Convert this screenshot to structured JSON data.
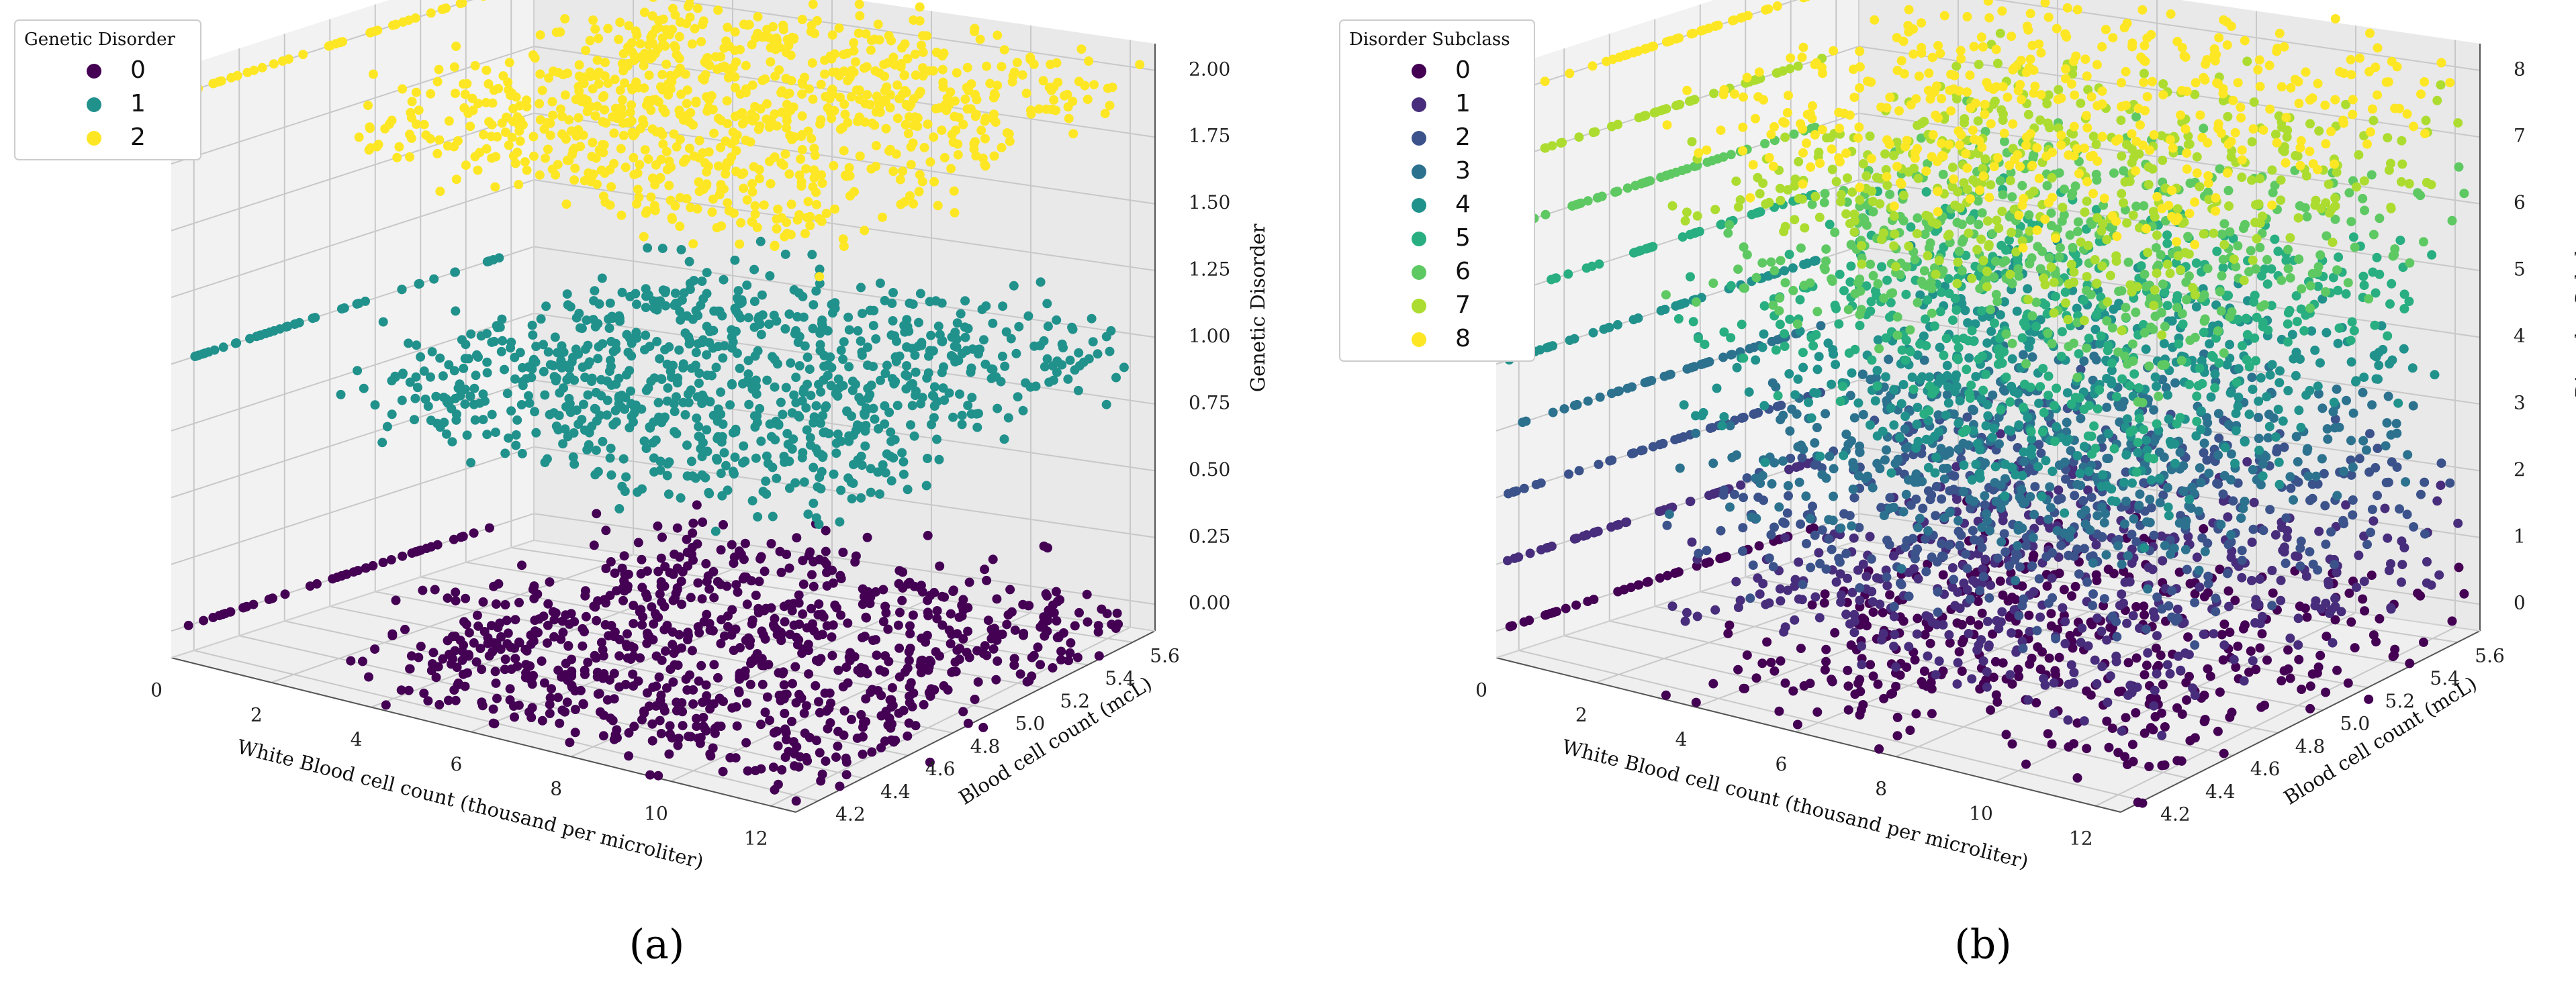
{
  "chart_data": [
    {
      "panel": "a",
      "type": "scatter",
      "caption": "(a)",
      "xlabel": "White Blood cell count (thousand per microliter)",
      "ylabel": "Blood cell count (mcL)",
      "zlabel": "Genetic Disorder",
      "x_ticks": [
        "0",
        "2",
        "4",
        "6",
        "8",
        "10",
        "12"
      ],
      "y_ticks": [
        "4.2",
        "4.4",
        "4.6",
        "4.8",
        "5.0",
        "5.2",
        "5.4",
        "5.6"
      ],
      "z_ticks": [
        "0.00",
        "0.25",
        "0.50",
        "0.75",
        "1.00",
        "1.25",
        "1.50",
        "1.75",
        "2.00"
      ],
      "xlim": [
        0,
        12.5
      ],
      "ylim": [
        4.1,
        5.7
      ],
      "zlim": [
        -0.1,
        2.1
      ],
      "legend": {
        "title": "Genetic Disorder",
        "entries": [
          {
            "label": "0",
            "color": "#440154"
          },
          {
            "label": "1",
            "color": "#21918c"
          },
          {
            "label": "2",
            "color": "#fde725"
          }
        ]
      },
      "series": [
        {
          "name": "0",
          "z": 0,
          "color": "#440154"
        },
        {
          "name": "1",
          "z": 1,
          "color": "#21918c"
        },
        {
          "name": "2",
          "z": 2,
          "color": "#fde725"
        }
      ]
    },
    {
      "panel": "b",
      "type": "scatter",
      "caption": "(b)",
      "xlabel": "White Blood cell count (thousand per microliter)",
      "ylabel": "Blood cell count (mcL)",
      "zlabel": "Disorder Subclass",
      "x_ticks": [
        "0",
        "2",
        "4",
        "6",
        "8",
        "10",
        "12"
      ],
      "y_ticks": [
        "4.2",
        "4.4",
        "4.6",
        "4.8",
        "5.0",
        "5.2",
        "5.4",
        "5.6"
      ],
      "z_ticks": [
        "0",
        "1",
        "2",
        "3",
        "4",
        "5",
        "6",
        "7",
        "8"
      ],
      "xlim": [
        0,
        12.5
      ],
      "ylim": [
        4.1,
        5.7
      ],
      "zlim": [
        -0.4,
        8.4
      ],
      "legend": {
        "title": "Disorder Subclass",
        "entries": [
          {
            "label": "0",
            "color": "#440154"
          },
          {
            "label": "1",
            "color": "#472d7b"
          },
          {
            "label": "2",
            "color": "#3b528b"
          },
          {
            "label": "3",
            "color": "#2c728e"
          },
          {
            "label": "4",
            "color": "#21918c"
          },
          {
            "label": "5",
            "color": "#28ae80"
          },
          {
            "label": "6",
            "color": "#5ec962"
          },
          {
            "label": "7",
            "color": "#addc30"
          },
          {
            "label": "8",
            "color": "#fde725"
          }
        ]
      },
      "series": [
        {
          "name": "0",
          "z": 0,
          "color": "#440154"
        },
        {
          "name": "1",
          "z": 1,
          "color": "#472d7b"
        },
        {
          "name": "2",
          "z": 2,
          "color": "#3b528b"
        },
        {
          "name": "3",
          "z": 3,
          "color": "#2c728e"
        },
        {
          "name": "4",
          "z": 4,
          "color": "#21918c"
        },
        {
          "name": "5",
          "z": 5,
          "color": "#28ae80"
        },
        {
          "name": "6",
          "z": 6,
          "color": "#5ec962"
        },
        {
          "name": "7",
          "z": 7,
          "color": "#addc30"
        },
        {
          "name": "8",
          "z": 8,
          "color": "#fde725"
        }
      ]
    }
  ]
}
